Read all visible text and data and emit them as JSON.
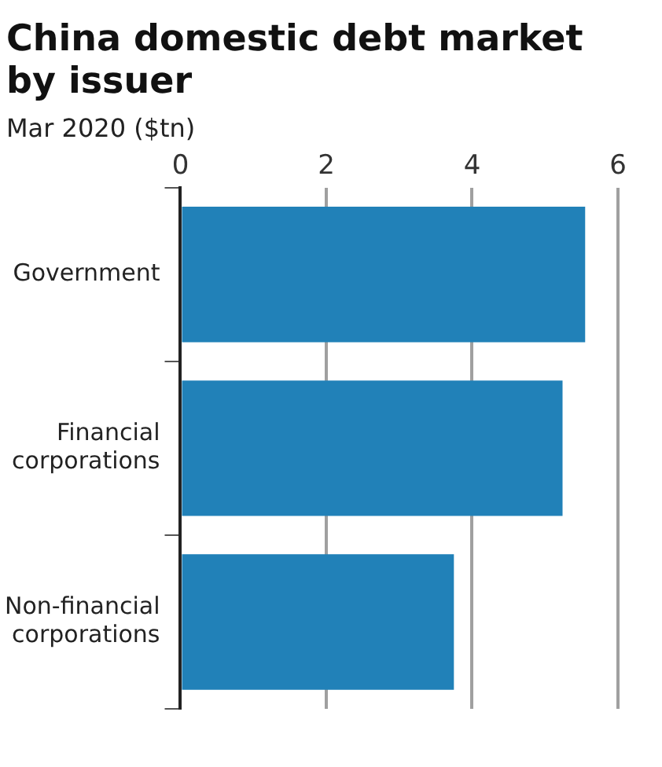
{
  "chart_data": {
    "type": "bar",
    "orientation": "horizontal",
    "title": "China domestic debt market by issuer",
    "subtitle": "Mar 2020 ($tn)",
    "categories": [
      "Government",
      "Financial corporations",
      "Non-financial corporations"
    ],
    "values": [
      5.55,
      5.24,
      3.75
    ],
    "color": "#2181b8",
    "xlim": [
      0,
      6
    ],
    "xticks": [
      0,
      2,
      4,
      6
    ],
    "grid": "x",
    "legend": false
  }
}
